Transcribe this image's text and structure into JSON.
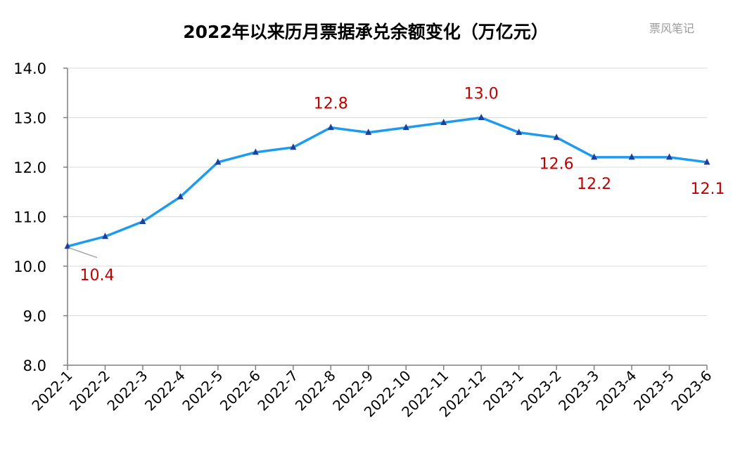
{
  "watermark": "票风笔记",
  "chart_data": {
    "type": "line",
    "title": "2022年以来历月票据承兑余额变化（万亿元）",
    "x": [
      "2022-1",
      "2022-2",
      "2022-3",
      "2022-4",
      "2022-5",
      "2022-6",
      "2022-7",
      "2022-8",
      "2022-9",
      "2022-10",
      "2022-11",
      "2022-12",
      "2023-1",
      "2023-2",
      "2023-3",
      "2023-4",
      "2023-5",
      "2023-6"
    ],
    "series": [
      {
        "values": [
          10.4,
          10.6,
          10.9,
          11.4,
          12.1,
          12.3,
          12.4,
          12.8,
          12.7,
          12.8,
          12.9,
          13.0,
          12.7,
          12.6,
          12.2,
          12.2,
          12.2,
          12.1
        ],
        "line_color": "#1e9bef",
        "marker": "triangle",
        "marker_color": "#1f3f9f"
      }
    ],
    "ylim": [
      8.0,
      14.0
    ],
    "y_ticks": [
      "8.0",
      "9.0",
      "10.0",
      "11.0",
      "12.0",
      "13.0",
      "14.0"
    ],
    "y_tick_values": [
      8.0,
      9.0,
      10.0,
      11.0,
      12.0,
      13.0,
      14.0
    ],
    "grid": true,
    "legend": "none",
    "data_labels": [
      {
        "index": 0,
        "text": "10.4"
      },
      {
        "index": 7,
        "text": "12.8"
      },
      {
        "index": 11,
        "text": "13.0"
      },
      {
        "index": 13,
        "text": "12.6"
      },
      {
        "index": 14,
        "text": "12.2"
      },
      {
        "index": 17,
        "text": "12.1"
      }
    ],
    "data_label_color": "#c00000"
  }
}
